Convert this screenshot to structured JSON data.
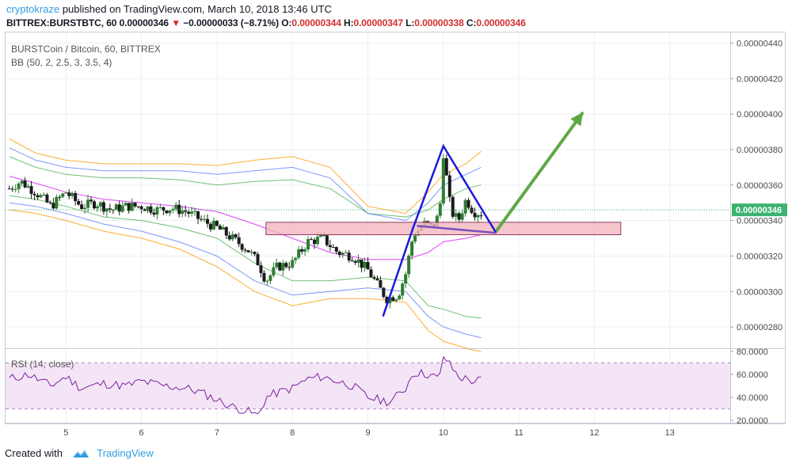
{
  "header": {
    "author": "cryptokraze",
    "published": " published on TradingView.com, March 10, 2018 13:46 UTC",
    "symbol": "BITTREX:BURSTBTC, 60",
    "last": "0.00000346",
    "arrow": "▼",
    "change": "−0.00000033 (−8.71%)",
    "o_label": "O:",
    "o_val": "0.00000344",
    "h_label": "H:",
    "h_val": "0.00000347",
    "l_label": "L:",
    "l_val": "0.00000338",
    "c_label": "C:",
    "c_val": "0.00000346"
  },
  "legend": {
    "main_title": "BURSTCoin / Bitcoin, 60, BITTREX",
    "indicator": "BB (50, 2, 2.5, 3, 3.5, 4)",
    "rsi_title": "RSI (14, close)"
  },
  "footer": {
    "created_with": "Created with",
    "brand": "TradingView"
  },
  "colors": {
    "up": "#2e7d32",
    "down": "#1b1b1b",
    "bb_basis": "#e040fb",
    "bb_green": "#4caf50",
    "bb_blue": "#5c7cfa",
    "bb_orange": "#ff9800",
    "rsi_line": "#7b1fa2",
    "rsi_fill": "#f3e5f5",
    "pattern": "#1a1adb",
    "zone_fill": "#f4b6be",
    "zone_stroke": "#8b3a62",
    "arrow": "#5fa845",
    "price_tag": "#3cb371"
  },
  "chart_data": [
    {
      "type": "candlestick",
      "title": "BURSTCoin / Bitcoin, 60, BITTREX",
      "x_ticks": [
        "5",
        "6",
        "7",
        "8",
        "9",
        "10",
        "11",
        "12",
        "13"
      ],
      "x_tick_positions": [
        5,
        6,
        7,
        8,
        9,
        10,
        11,
        12,
        13
      ],
      "xlim": [
        4.2,
        13.8
      ],
      "y_ticks": [
        "0.00000280",
        "0.00000300",
        "0.00000320",
        "0.00000340",
        "0.00000360",
        "0.00000380",
        "0.00000400",
        "0.00000420",
        "0.00000440"
      ],
      "y_tick_values": [
        280,
        300,
        320,
        340,
        360,
        380,
        400,
        420,
        440
      ],
      "y_unit_note": "values in units of 1e-8 BTC",
      "ylim": [
        268,
        446
      ],
      "last_price_label": "0.00000346",
      "last_price": 346,
      "close_path": {
        "x": [
          4.25,
          4.4,
          4.6,
          4.8,
          5.0,
          5.2,
          5.4,
          5.6,
          5.8,
          6.0,
          6.2,
          6.4,
          6.6,
          6.8,
          7.0,
          7.2,
          7.4,
          7.55,
          7.65,
          7.8,
          8.0,
          8.2,
          8.4,
          8.6,
          8.8,
          9.0,
          9.15,
          9.25,
          9.4,
          9.5,
          9.6,
          9.75,
          9.85,
          9.95,
          10.0,
          10.1,
          10.2,
          10.3,
          10.4,
          10.5
        ],
        "y": [
          358,
          362,
          356,
          348,
          356,
          348,
          350,
          346,
          348,
          348,
          346,
          347,
          345,
          340,
          336,
          330,
          324,
          316,
          306,
          314,
          316,
          328,
          330,
          322,
          320,
          312,
          302,
          296,
          298,
          310,
          332,
          338,
          336,
          344,
          378,
          345,
          340,
          352,
          345,
          344
        ]
      },
      "bollinger": {
        "x": [
          4.25,
          4.6,
          5.0,
          5.5,
          6.0,
          6.5,
          7.0,
          7.5,
          8.0,
          8.5,
          9.0,
          9.5,
          9.8,
          10.0,
          10.3,
          10.5
        ],
        "basis": [
          365,
          361,
          356,
          352,
          350,
          348,
          345,
          338,
          330,
          322,
          318,
          318,
          322,
          328,
          330,
          332
        ],
        "bands_upper": [
          [
            376,
            370,
            366,
            364,
            364,
            363,
            360,
            362,
            363,
            358,
            344,
            342,
            346,
            352,
            358,
            360
          ],
          [
            381,
            374,
            370,
            368,
            368,
            368,
            366,
            368,
            370,
            364,
            344,
            340,
            350,
            360,
            366,
            370
          ],
          [
            386,
            378,
            374,
            372,
            372,
            372,
            371,
            374,
            376,
            370,
            348,
            344,
            356,
            366,
            372,
            379
          ]
        ],
        "bands_lower": [
          [
            354,
            352,
            348,
            342,
            340,
            336,
            330,
            316,
            306,
            306,
            308,
            306,
            292,
            290,
            286,
            285
          ],
          [
            350,
            348,
            344,
            338,
            334,
            328,
            320,
            306,
            298,
            300,
            302,
            300,
            286,
            280,
            276,
            274
          ],
          [
            346,
            344,
            340,
            334,
            330,
            324,
            314,
            300,
            292,
            296,
            296,
            294,
            278,
            272,
            268,
            266
          ]
        ]
      },
      "pattern_path": {
        "x": [
          9.2,
          9.6,
          10.0,
          10.7,
          9.65
        ],
        "y": [
          286,
          336,
          382,
          333,
          337
        ]
      },
      "zone": {
        "x": [
          7.65,
          12.35
        ],
        "y": [
          332,
          339
        ]
      },
      "arrow": {
        "x": [
          10.7,
          11.85
        ],
        "y": [
          334,
          401
        ]
      }
    },
    {
      "type": "line",
      "title": "RSI (14, close)",
      "y_ticks": [
        "20.0000",
        "40.0000",
        "60.0000",
        "80.0000"
      ],
      "y_tick_values": [
        20,
        40,
        60,
        80
      ],
      "ylim": [
        18,
        82
      ],
      "band": [
        30,
        70
      ],
      "x": [
        4.25,
        4.5,
        4.8,
        5.0,
        5.2,
        5.5,
        5.8,
        6.0,
        6.3,
        6.6,
        6.8,
        7.0,
        7.2,
        7.4,
        7.55,
        7.65,
        7.8,
        8.0,
        8.2,
        8.4,
        8.6,
        8.8,
        9.0,
        9.15,
        9.3,
        9.5,
        9.6,
        9.8,
        9.95,
        10.0,
        10.2,
        10.4,
        10.5
      ],
      "values": [
        56,
        60,
        50,
        58,
        48,
        52,
        50,
        54,
        50,
        48,
        44,
        38,
        32,
        28,
        24,
        40,
        44,
        48,
        56,
        58,
        54,
        50,
        40,
        38,
        36,
        48,
        62,
        60,
        56,
        76,
        58,
        54,
        55
      ]
    }
  ]
}
